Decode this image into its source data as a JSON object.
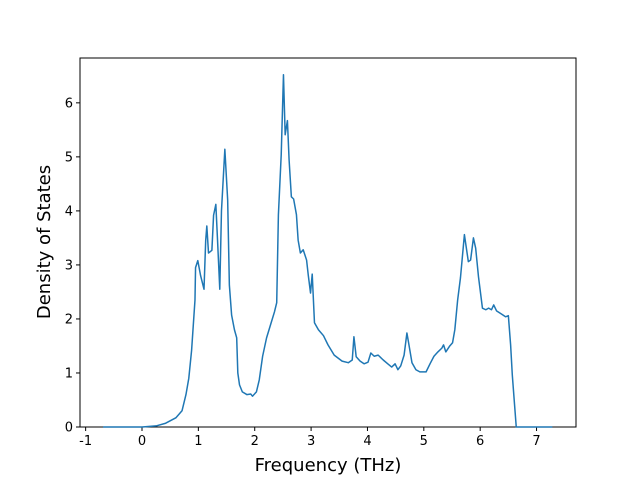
{
  "chart_data": {
    "type": "line",
    "xlabel": "Frequency (THz)",
    "ylabel": "Density of States",
    "xlim": [
      -1.1,
      7.7
    ],
    "ylim": [
      0,
      6.83
    ],
    "xticks": [
      -1,
      0,
      1,
      2,
      3,
      4,
      5,
      6,
      7
    ],
    "yticks": [
      0,
      1,
      2,
      3,
      4,
      5,
      6
    ],
    "grid": false,
    "series": [
      {
        "color": "#1f77b4",
        "x": [
          -0.69,
          0,
          0.25,
          0.42,
          0.6,
          0.71,
          0.78,
          0.83,
          0.88,
          0.94,
          0.95,
          0.99,
          1.04,
          1.1,
          1.13,
          1.15,
          1.18,
          1.24,
          1.27,
          1.31,
          1.34,
          1.38,
          1.41,
          1.47,
          1.52,
          1.55,
          1.59,
          1.64,
          1.68,
          1.7,
          1.73,
          1.78,
          1.86,
          1.93,
          1.96,
          2.03,
          2.08,
          2.14,
          2.21,
          2.28,
          2.35,
          2.39,
          2.42,
          2.47,
          2.51,
          2.54,
          2.58,
          2.61,
          2.65,
          2.69,
          2.74,
          2.77,
          2.81,
          2.86,
          2.92,
          2.95,
          2.99,
          3.02,
          3.06,
          3.13,
          3.22,
          3.3,
          3.41,
          3.55,
          3.66,
          3.73,
          3.76,
          3.8,
          3.87,
          3.94,
          4.01,
          4.06,
          4.12,
          4.19,
          4.28,
          4.36,
          4.43,
          4.49,
          4.54,
          4.59,
          4.65,
          4.7,
          4.73,
          4.79,
          4.86,
          4.93,
          5.04,
          5.11,
          5.18,
          5.25,
          5.32,
          5.35,
          5.39,
          5.46,
          5.51,
          5.55,
          5.6,
          5.65,
          5.72,
          5.79,
          5.83,
          5.88,
          5.92,
          5.97,
          6.04,
          6.1,
          6.15,
          6.2,
          6.24,
          6.29,
          6.38,
          6.45,
          6.5,
          6.54,
          6.57,
          6.61,
          6.64,
          7.28
        ],
        "values": [
          0,
          0,
          0.02,
          0.07,
          0.17,
          0.3,
          0.6,
          0.9,
          1.42,
          2.35,
          2.95,
          3.08,
          2.8,
          2.55,
          3.45,
          3.72,
          3.22,
          3.27,
          3.92,
          4.12,
          3.46,
          2.55,
          4.0,
          5.14,
          4.2,
          2.63,
          2.07,
          1.8,
          1.65,
          1.0,
          0.78,
          0.65,
          0.6,
          0.61,
          0.57,
          0.65,
          0.87,
          1.31,
          1.65,
          1.89,
          2.13,
          2.3,
          3.93,
          5.04,
          6.52,
          5.41,
          5.67,
          4.94,
          4.26,
          4.22,
          3.93,
          3.46,
          3.22,
          3.28,
          3.09,
          2.81,
          2.48,
          2.83,
          1.93,
          1.8,
          1.69,
          1.52,
          1.33,
          1.22,
          1.19,
          1.24,
          1.67,
          1.3,
          1.22,
          1.17,
          1.2,
          1.37,
          1.31,
          1.33,
          1.24,
          1.17,
          1.11,
          1.17,
          1.06,
          1.13,
          1.33,
          1.74,
          1.56,
          1.19,
          1.06,
          1.02,
          1.02,
          1.17,
          1.31,
          1.39,
          1.46,
          1.52,
          1.39,
          1.5,
          1.56,
          1.8,
          2.35,
          2.76,
          3.56,
          3.06,
          3.09,
          3.5,
          3.31,
          2.78,
          2.2,
          2.17,
          2.2,
          2.17,
          2.26,
          2.15,
          2.09,
          2.04,
          2.06,
          1.52,
          0.96,
          0.41,
          0,
          0
        ]
      }
    ]
  }
}
